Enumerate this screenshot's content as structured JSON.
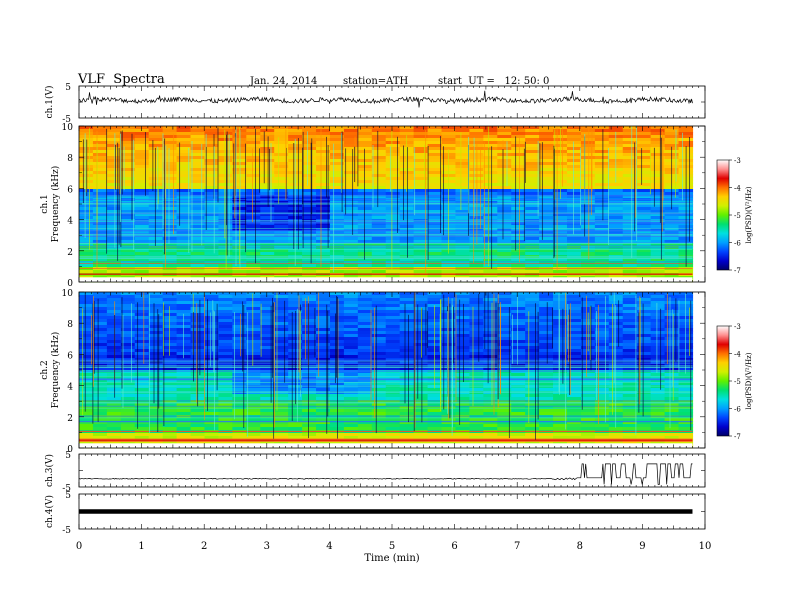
{
  "header": {
    "title": "VLF  Spectra",
    "date": "Jan. 24, 2014",
    "station": "station=ATH",
    "start": "start  UT =   12: 50: 0"
  },
  "colors": {
    "colormap": [
      "#000066",
      "#0000cc",
      "#0044ff",
      "#00a0ff",
      "#00e0e0",
      "#00e070",
      "#60f000",
      "#d0f000",
      "#ffd000",
      "#ff7000",
      "#e00000",
      "#ff9090",
      "#ffffff"
    ]
  },
  "chart_data": [
    {
      "type": "line",
      "panel": "ch1",
      "ylabel": "ch.1(V)",
      "ylim": [
        -5,
        5
      ],
      "yticks": [
        "5",
        "-5"
      ],
      "xlim": [
        0,
        10
      ],
      "description": "noisy waveform near +0.5 V with spikes"
    },
    {
      "type": "heatmap",
      "panel": "ch1-spectrogram",
      "ylabel_top": "ch.1",
      "ylabel": "Frequency  (kHz)",
      "ylim": [
        0,
        10
      ],
      "yticks": [
        "0",
        "2",
        "4",
        "6",
        "8",
        "10"
      ],
      "xlim": [
        0,
        10
      ],
      "colorbar": {
        "label": "log(PSD)(V²/Hz)",
        "ticks": [
          "-7",
          "-6",
          "-5",
          "-4",
          "-3"
        ],
        "range": [
          -7,
          -3
        ]
      }
    },
    {
      "type": "heatmap",
      "panel": "ch2-spectrogram",
      "ylabel_top": "ch.2",
      "ylabel": "Frequency  (kHz)",
      "ylim": [
        0,
        10
      ],
      "yticks": [
        "0",
        "2",
        "4",
        "6",
        "8",
        "10"
      ],
      "xlim": [
        0,
        10
      ],
      "colorbar": {
        "label": "log(PSD)(V²/Hz)",
        "ticks": [
          "-7",
          "-6",
          "-5",
          "-4",
          "-3"
        ],
        "range": [
          -7,
          -3
        ]
      }
    },
    {
      "type": "line",
      "panel": "ch3",
      "ylabel": "ch.3(V)",
      "ylim": [
        -5,
        5
      ],
      "yticks": [
        "5",
        "-5"
      ],
      "xlim": [
        0,
        10
      ],
      "description": "flat near -2.5 V, square pulses after 8 min"
    },
    {
      "type": "line",
      "panel": "ch4",
      "ylabel": "ch.4(V)",
      "ylim": [
        -5,
        5
      ],
      "yticks": [
        "5",
        "-5"
      ],
      "xlim": [
        0,
        10
      ],
      "description": "thick flat trace near 0 V"
    }
  ],
  "xaxis": {
    "label": "Time  (min)",
    "ticks": [
      "0",
      "1",
      "2",
      "3",
      "4",
      "5",
      "6",
      "7",
      "8",
      "9",
      "10"
    ],
    "data_end": 9.8
  }
}
